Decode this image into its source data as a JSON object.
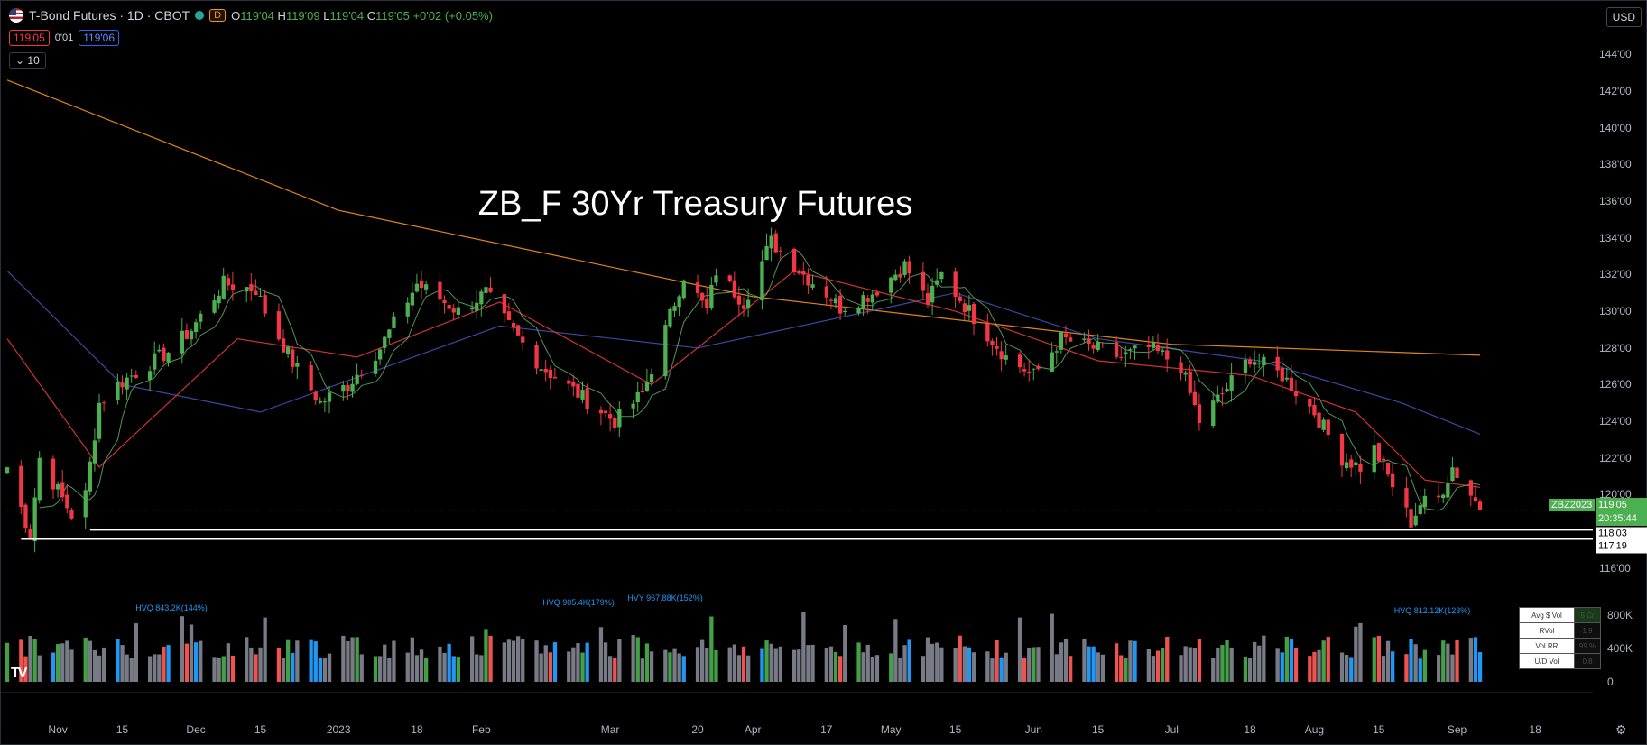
{
  "legend": {
    "title": "T-Bond Futures · 1D · CBOT",
    "badge": "D",
    "open_label": "O",
    "open": "119'04",
    "high_label": "H",
    "high": "119'09",
    "low_label": "L",
    "low": "119'04",
    "close_label": "C",
    "close": "119'05",
    "change": "+0'02 (+0.05%)"
  },
  "quote": {
    "bid": "119'05",
    "spread": "0'01",
    "ask": "119'06"
  },
  "collapse": {
    "label": "10"
  },
  "currency": "USD",
  "price_axis": {
    "labels": [
      "144'00",
      "142'00",
      "140'00",
      "138'00",
      "136'00",
      "134'00",
      "132'00",
      "130'00",
      "128'00",
      "126'00",
      "124'00",
      "122'00",
      "120'00",
      "118'00",
      "116'00"
    ]
  },
  "time_axis": {
    "labels": [
      "Nov",
      "15",
      "Dec",
      "15",
      "2023",
      "18",
      "Feb",
      "Mar",
      "20",
      "Apr",
      "17",
      "May",
      "15",
      "Jun",
      "15",
      "Jul",
      "18",
      "Aug",
      "15",
      "Sep",
      "18"
    ]
  },
  "tags": {
    "symbol": "ZBZ2023",
    "last_price": "119'05",
    "countdown": "20:35:44",
    "level_upper": "118'03",
    "level_lower": "117'19"
  },
  "volume": {
    "axis": [
      "800K",
      "400K",
      "0"
    ],
    "annotations": [
      "HVQ 843.2K(144%)",
      "HVQ 905.4K(179%)",
      "HVY 967.88K(152%)",
      "HVQ 812.12K(123%)"
    ],
    "table": [
      {
        "label": "Avg $ Vol",
        "value": "5 Cr"
      },
      {
        "label": "RVol",
        "value": "1.9"
      },
      {
        "label": "Vol RR",
        "value": "99 %"
      },
      {
        "label": "U/D Vol",
        "value": "0.8"
      }
    ],
    "marker": "Q"
  },
  "chart_data": {
    "type": "candlestick",
    "title": "ZB_F 30Yr Treasury Futures",
    "xlabel": "",
    "ylabel": "",
    "ylim": [
      115.5,
      145
    ],
    "start_date": "2022-10-21",
    "end_date": "2023-09-06",
    "horizontal_levels": [
      118.09,
      117.59
    ],
    "series": [
      {
        "type": "close_waypoints",
        "points": [
          [
            "2022-10-21",
            121.5
          ],
          [
            "2022-10-26",
            117.8
          ],
          [
            "2022-10-28",
            122.0
          ],
          [
            "2022-11-04",
            118.9
          ],
          [
            "2022-11-07",
            120.0
          ],
          [
            "2022-11-10",
            125.0
          ],
          [
            "2022-11-14",
            126.0
          ],
          [
            "2022-11-17",
            126.5
          ],
          [
            "2022-11-25",
            127.8
          ],
          [
            "2022-11-30",
            129.0
          ],
          [
            "2022-12-07",
            131.5
          ],
          [
            "2022-12-14",
            131.2
          ],
          [
            "2022-12-16",
            130.0
          ],
          [
            "2022-12-22",
            127.2
          ],
          [
            "2022-12-28",
            125.0
          ],
          [
            "2023-01-03",
            126.0
          ],
          [
            "2023-01-10",
            128.0
          ],
          [
            "2023-01-18",
            131.5
          ],
          [
            "2023-01-27",
            130.0
          ],
          [
            "2023-02-02",
            131.0
          ],
          [
            "2023-02-06",
            129.5
          ],
          [
            "2023-02-14",
            127.0
          ],
          [
            "2023-02-22",
            125.5
          ],
          [
            "2023-03-02",
            124.0
          ],
          [
            "2023-03-08",
            125.5
          ],
          [
            "2023-03-13",
            129.0
          ],
          [
            "2023-03-17",
            132.0
          ],
          [
            "2023-03-22",
            130.0
          ],
          [
            "2023-03-24",
            132.2
          ],
          [
            "2023-03-30",
            130.5
          ],
          [
            "2023-04-05",
            133.8
          ],
          [
            "2023-04-12",
            132.0
          ],
          [
            "2023-04-17",
            131.0
          ],
          [
            "2023-04-20",
            130.2
          ],
          [
            "2023-04-27",
            131.0
          ],
          [
            "2023-05-04",
            132.5
          ],
          [
            "2023-05-09",
            130.5
          ],
          [
            "2023-05-12",
            132.0
          ],
          [
            "2023-05-18",
            130.0
          ],
          [
            "2023-05-26",
            127.5
          ],
          [
            "2023-06-01",
            126.5
          ],
          [
            "2023-06-07",
            128.5
          ],
          [
            "2023-06-14",
            128.0
          ],
          [
            "2023-06-20",
            127.5
          ],
          [
            "2023-06-26",
            128.0
          ],
          [
            "2023-07-03",
            127.0
          ],
          [
            "2023-07-07",
            124.0
          ],
          [
            "2023-07-12",
            125.5
          ],
          [
            "2023-07-18",
            127.5
          ],
          [
            "2023-07-25",
            126.5
          ],
          [
            "2023-08-01",
            124.5
          ],
          [
            "2023-08-07",
            122.0
          ],
          [
            "2023-08-11",
            121.5
          ],
          [
            "2023-08-14",
            122.5
          ],
          [
            "2023-08-22",
            118.5
          ],
          [
            "2023-08-24",
            119.5
          ],
          [
            "2023-08-28",
            119.8
          ],
          [
            "2023-08-31",
            121.5
          ],
          [
            "2023-09-06",
            119.3
          ]
        ]
      },
      {
        "name": "",
        "type": "line",
        "color": "#f7931a",
        "points": [
          [
            "2022-10-21",
            142.6
          ],
          [
            "2023-01-01",
            135.5
          ],
          [
            "2023-04-01",
            130.8
          ],
          [
            "2023-07-01",
            128.2
          ],
          [
            "2023-09-06",
            127.6
          ]
        ]
      },
      {
        "name": "",
        "type": "line",
        "color": "#3f51b5",
        "points": [
          [
            "2022-10-21",
            132.2
          ],
          [
            "2022-11-15",
            126.0
          ],
          [
            "2022-12-15",
            124.5
          ],
          [
            "2023-02-05",
            129.2
          ],
          [
            "2023-03-20",
            128.0
          ],
          [
            "2023-05-15",
            131.0
          ],
          [
            "2023-06-15",
            128.5
          ],
          [
            "2023-07-20",
            127.3
          ],
          [
            "2023-08-20",
            125.0
          ],
          [
            "2023-09-06",
            123.3
          ]
        ]
      },
      {
        "name": "",
        "type": "line",
        "color": "#e53935",
        "points": [
          [
            "2022-10-21",
            128.5
          ],
          [
            "2022-11-10",
            121.5
          ],
          [
            "2022-12-10",
            128.5
          ],
          [
            "2023-01-05",
            127.5
          ],
          [
            "2023-02-05",
            130.5
          ],
          [
            "2023-03-10",
            126.0
          ],
          [
            "2023-04-10",
            132.2
          ],
          [
            "2023-05-15",
            130.0
          ],
          [
            "2023-06-15",
            127.3
          ],
          [
            "2023-07-18",
            126.5
          ],
          [
            "2023-08-10",
            124.5
          ],
          [
            "2023-08-25",
            120.8
          ],
          [
            "2023-09-06",
            120.4
          ]
        ]
      }
    ],
    "volume_bars": {
      "unit": "contracts",
      "ylim": [
        0,
        1000000
      ]
    }
  }
}
